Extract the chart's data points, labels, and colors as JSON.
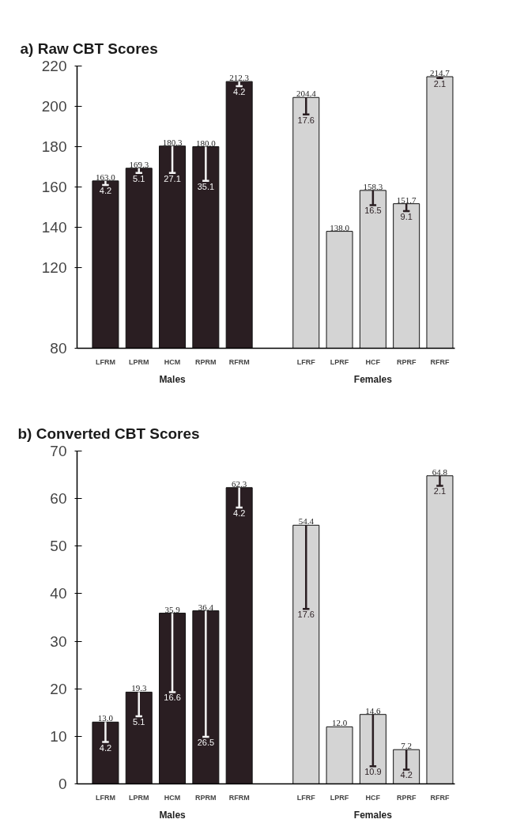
{
  "chart_data": [
    {
      "type": "bar",
      "title": "a) Raw CBT Scores",
      "categories": [
        "LFRM",
        "LPRM",
        "HCM",
        "RPRM",
        "RFRM",
        null,
        "LFRF",
        "LPRF",
        "HCF",
        "RPRF",
        "RFRF"
      ],
      "series": [
        {
          "name": "Males",
          "color": "#2a1e22",
          "values": [
            163.0,
            169.3,
            180.3,
            180.0,
            212.3,
            null,
            null,
            null,
            null,
            null,
            null
          ],
          "value_labels": [
            "163.0",
            "169.3",
            "180.3",
            "180.0",
            "212.3",
            null,
            null,
            null,
            null,
            null,
            null
          ],
          "errors": [
            [
              161,
              163.0
            ],
            [
              167,
              169.3
            ],
            [
              167,
              180.3
            ],
            [
              163,
              180.0
            ],
            [
              210,
              212.3
            ],
            null,
            null,
            null,
            null,
            null,
            null
          ]
        },
        {
          "name": "Females",
          "color": "#d4d4d4",
          "values": [
            null,
            null,
            null,
            null,
            null,
            null,
            204.4,
            138.0,
            158.3,
            151.7,
            214.7
          ],
          "value_labels": [
            null,
            null,
            null,
            null,
            null,
            null,
            "204.4",
            "138.0",
            "158.3",
            "151.7",
            "214.7"
          ],
          "errors": [
            null,
            null,
            null,
            null,
            null,
            null,
            [
              196,
              204.4
            ],
            null,
            [
              151,
              158.3
            ],
            [
              148,
              151.7
            ],
            [
              214,
              214.7
            ]
          ]
        }
      ],
      "ylim": [
        80,
        220
      ],
      "yticks": [
        80,
        120,
        140,
        160,
        180,
        200,
        220
      ],
      "annotations": [
        {
          "text": "4.2",
          "x": "LFRM",
          "y": 161
        },
        {
          "text": "5.1",
          "x": "LPRM",
          "y": 167
        },
        {
          "text": "27.1",
          "x": "HCM",
          "y": 167
        },
        {
          "text": "35.1",
          "x": "RPRM",
          "y": 163
        },
        {
          "text": "4.2",
          "x": "RFRM",
          "y": 210
        },
        {
          "text": "17.6",
          "x": "LFRF",
          "y": 196
        },
        {
          "text": "16.5",
          "x": "HCF",
          "y": 151
        },
        {
          "text": "9.1",
          "x": "RPRF",
          "y": 148
        },
        {
          "text": "2.1",
          "x": "RFRF",
          "y": 214
        }
      ]
    },
    {
      "type": "bar",
      "title": "b) Converted CBT Scores",
      "categories": [
        "LFRM",
        "LPRM",
        "HCM",
        "RPRM",
        "RFRM",
        null,
        "LFRF",
        "LPRF",
        "HCF",
        "RPRF",
        "RFRF"
      ],
      "series": [
        {
          "name": "Males",
          "color": "#2a1e22",
          "values": [
            13.0,
            19.3,
            35.9,
            36.4,
            62.3,
            null,
            null,
            null,
            null,
            null,
            null
          ],
          "value_labels": [
            "13.0",
            "19.3",
            "35.9",
            "36.4",
            "62.3",
            null,
            null,
            null,
            null,
            null,
            null
          ],
          "errors": [
            [
              8.8,
              13.0
            ],
            [
              14.2,
              19.3
            ],
            [
              19.3,
              35.9
            ],
            [
              9.9,
              36.4
            ],
            [
              58.1,
              62.3
            ],
            null,
            null,
            null,
            null,
            null,
            null
          ]
        },
        {
          "name": "Females",
          "color": "#d4d4d4",
          "values": [
            null,
            null,
            null,
            null,
            null,
            null,
            54.4,
            12.0,
            14.6,
            7.2,
            64.8
          ],
          "value_labels": [
            null,
            null,
            null,
            null,
            null,
            null,
            "54.4",
            "12.0",
            "14.6",
            "7.2",
            "64.8"
          ],
          "errors": [
            null,
            null,
            null,
            null,
            null,
            null,
            [
              36.8,
              54.4
            ],
            null,
            [
              3.7,
              14.6
            ],
            [
              3.0,
              7.2
            ],
            [
              62.7,
              64.8
            ]
          ]
        }
      ],
      "ylim": [
        0,
        70
      ],
      "yticks": [
        0,
        10,
        20,
        30,
        40,
        50,
        60,
        70
      ],
      "annotations": [
        {
          "text": "4.2",
          "x": "LFRM",
          "y": 8.8
        },
        {
          "text": "5.1",
          "x": "LPRM",
          "y": 14.2
        },
        {
          "text": "16.6",
          "x": "HCM",
          "y": 19.3
        },
        {
          "text": "26.5",
          "x": "RPRM",
          "y": 9.9
        },
        {
          "text": "4.2",
          "x": "RFRM",
          "y": 58.1
        },
        {
          "text": "17.6",
          "x": "LFRF",
          "y": 36.8
        },
        {
          "text": "10.9",
          "x": "HCF",
          "y": 3.7
        },
        {
          "text": "4.2",
          "x": "RPRF",
          "y": 3.0
        },
        {
          "text": "2.1",
          "x": "RFRF",
          "y": 62.7
        }
      ]
    }
  ]
}
